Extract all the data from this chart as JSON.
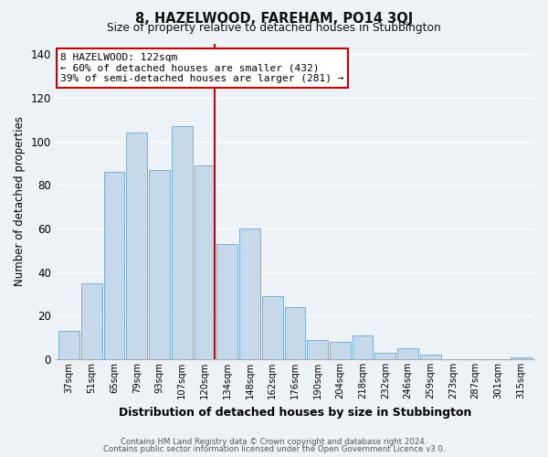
{
  "title": "8, HAZELWOOD, FAREHAM, PO14 3QJ",
  "subtitle": "Size of property relative to detached houses in Stubbington",
  "xlabel": "Distribution of detached houses by size in Stubbington",
  "ylabel": "Number of detached properties",
  "footer_line1": "Contains HM Land Registry data © Crown copyright and database right 2024.",
  "footer_line2": "Contains public sector information licensed under the Open Government Licence v3.0.",
  "categories": [
    "37sqm",
    "51sqm",
    "65sqm",
    "79sqm",
    "93sqm",
    "107sqm",
    "120sqm",
    "134sqm",
    "148sqm",
    "162sqm",
    "176sqm",
    "190sqm",
    "204sqm",
    "218sqm",
    "232sqm",
    "246sqm",
    "259sqm",
    "273sqm",
    "287sqm",
    "301sqm",
    "315sqm"
  ],
  "values": [
    13,
    35,
    86,
    104,
    87,
    107,
    89,
    53,
    60,
    29,
    24,
    9,
    8,
    11,
    3,
    5,
    2,
    0,
    0,
    0,
    1
  ],
  "bar_color": "#c5d9ea",
  "bar_edge_color": "#7bafd4",
  "highlight_index": 6,
  "highlight_bar_edge_color": "#cc0000",
  "annotation_title": "8 HAZELWOOD: 122sqm",
  "annotation_line1": "← 60% of detached houses are smaller (432)",
  "annotation_line2": "39% of semi-detached houses are larger (281) →",
  "annotation_box_edge_color": "#cc0000",
  "vline_color": "#cc0000",
  "ylim": [
    0,
    145
  ],
  "background_color": "#edf2f7"
}
